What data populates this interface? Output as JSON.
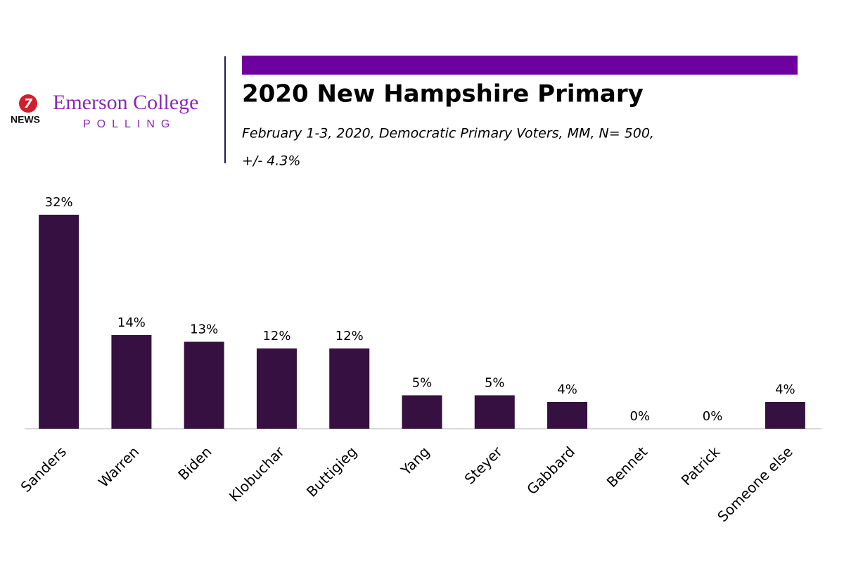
{
  "logo": {
    "number": "7",
    "news": "NEWS",
    "name": "Emerson College",
    "sub": "POLLING"
  },
  "chart_data": {
    "type": "bar",
    "title": "2020 New Hampshire Primary",
    "subtitle": [
      "February 1-3, 2020, Democratic Primary Voters, MM,  N= 500,",
      "+/- 4.3%"
    ],
    "categories": [
      "Sanders",
      "Warren",
      "Biden",
      "Klobuchar",
      "Buttigieg",
      "Yang",
      "Steyer",
      "Gabbard",
      "Bennet",
      "Patrick",
      "Someone else"
    ],
    "values": [
      32,
      14,
      13,
      12,
      12,
      5,
      5,
      4,
      0,
      0,
      4
    ],
    "value_labels": [
      "32%",
      "14%",
      "13%",
      "12%",
      "12%",
      "5%",
      "5%",
      "4%",
      "0%",
      "0%",
      "4%"
    ],
    "color": "#361040"
  }
}
